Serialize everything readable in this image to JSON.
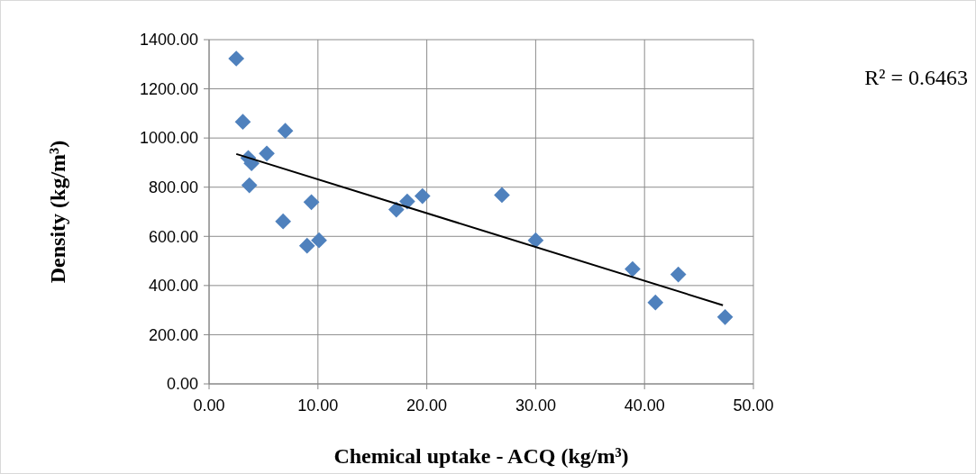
{
  "chart_data": {
    "type": "scatter",
    "xlabel": "Chemical uptake - ACQ (kg/m³)",
    "ylabel": "Density (kg/m³)",
    "annotations": [
      "R² = 0.6463"
    ],
    "xlim": [
      0,
      50
    ],
    "ylim": [
      0,
      1400
    ],
    "xticks": [
      {
        "value": 0,
        "label": "0.00"
      },
      {
        "value": 10,
        "label": "10.00"
      },
      {
        "value": 20,
        "label": "20.00"
      },
      {
        "value": 30,
        "label": "30.00"
      },
      {
        "value": 40,
        "label": "40.00"
      },
      {
        "value": 50,
        "label": "50.00"
      }
    ],
    "yticks": [
      {
        "value": 0,
        "label": "0.00"
      },
      {
        "value": 200,
        "label": "200.00"
      },
      {
        "value": 400,
        "label": "400.00"
      },
      {
        "value": 600,
        "label": "600.00"
      },
      {
        "value": 800,
        "label": "800.00"
      },
      {
        "value": 1000,
        "label": "1000.00"
      },
      {
        "value": 1200,
        "label": "1200.00"
      },
      {
        "value": 1400,
        "label": "1400.00"
      }
    ],
    "grid": true,
    "series": [
      {
        "color": "#4f81bd",
        "marker": "diamond",
        "x": [
          2.5,
          3.1,
          3.6,
          3.9,
          3.7,
          5.3,
          7.0,
          6.8,
          9.4,
          9.0,
          10.1,
          17.2,
          18.2,
          19.6,
          26.9,
          30.0,
          38.9,
          41.0,
          43.1,
          47.4
        ],
        "values": [
          1323,
          1066,
          919,
          897,
          808,
          937,
          1029,
          661,
          739,
          562,
          584,
          709,
          742,
          764,
          768,
          584,
          467,
          331,
          445,
          272
        ]
      },
      {
        "type": "line",
        "color": "#000000",
        "marker": "none",
        "x": [
          2.5,
          47.2
        ],
        "values": [
          935,
          320
        ]
      }
    ]
  }
}
